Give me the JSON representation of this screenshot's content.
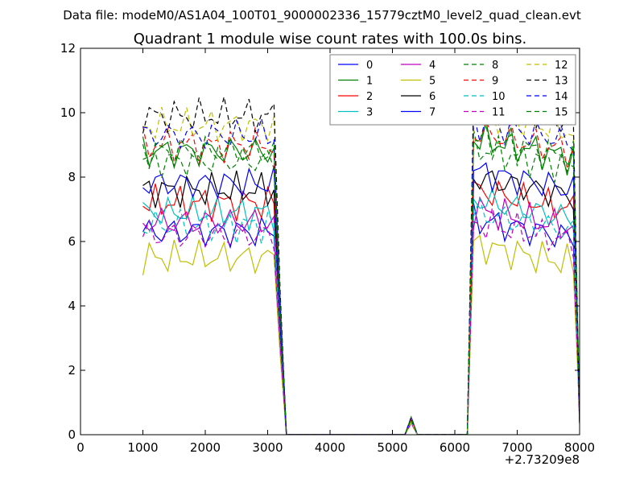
{
  "suptitle": "Data file: modeM0/AS1A04_100T01_9000002336_15779cztM0_level2_quad_clean.evt",
  "chart_data": {
    "type": "line",
    "title": "Quadrant 1 module wise count rates with 100.0s bins.",
    "xlabel": "",
    "ylabel": "",
    "x_offset_label": "+2.73209e8",
    "xlim": [
      0,
      8000
    ],
    "ylim": [
      0,
      12
    ],
    "xticks": [
      0,
      1000,
      2000,
      3000,
      4000,
      5000,
      6000,
      7000,
      8000
    ],
    "yticks": [
      0,
      2,
      4,
      6,
      8,
      10,
      12
    ],
    "legend_position": "top-right",
    "legend_columns": 4,
    "series_levels": [
      6.3,
      8.8,
      7.2,
      6.9,
      6.6,
      5.5,
      7.6,
      7.8,
      8.5,
      9.0,
      6.5,
      6.2,
      9.6,
      9.9,
      9.3,
      8.8
    ],
    "series": [
      {
        "name": "0",
        "color": "#0000ff",
        "dash": "solid"
      },
      {
        "name": "1",
        "color": "#008000",
        "dash": "solid"
      },
      {
        "name": "2",
        "color": "#ff0000",
        "dash": "solid"
      },
      {
        "name": "3",
        "color": "#00bfbf",
        "dash": "solid"
      },
      {
        "name": "4",
        "color": "#bf00bf",
        "dash": "solid"
      },
      {
        "name": "5",
        "color": "#bfbf00",
        "dash": "solid"
      },
      {
        "name": "6",
        "color": "#000000",
        "dash": "solid"
      },
      {
        "name": "7",
        "color": "#0000ff",
        "dash": "solid"
      },
      {
        "name": "8",
        "color": "#008000",
        "dash": "dashed"
      },
      {
        "name": "9",
        "color": "#ff0000",
        "dash": "dashed"
      },
      {
        "name": "10",
        "color": "#00bfbf",
        "dash": "dashed"
      },
      {
        "name": "11",
        "color": "#bf00bf",
        "dash": "dashed"
      },
      {
        "name": "12",
        "color": "#bfbf00",
        "dash": "dashed"
      },
      {
        "name": "13",
        "color": "#000000",
        "dash": "dashed"
      },
      {
        "name": "14",
        "color": "#0000ff",
        "dash": "dashed"
      },
      {
        "name": "15",
        "color": "#008000",
        "dash": "dashed"
      }
    ]
  }
}
